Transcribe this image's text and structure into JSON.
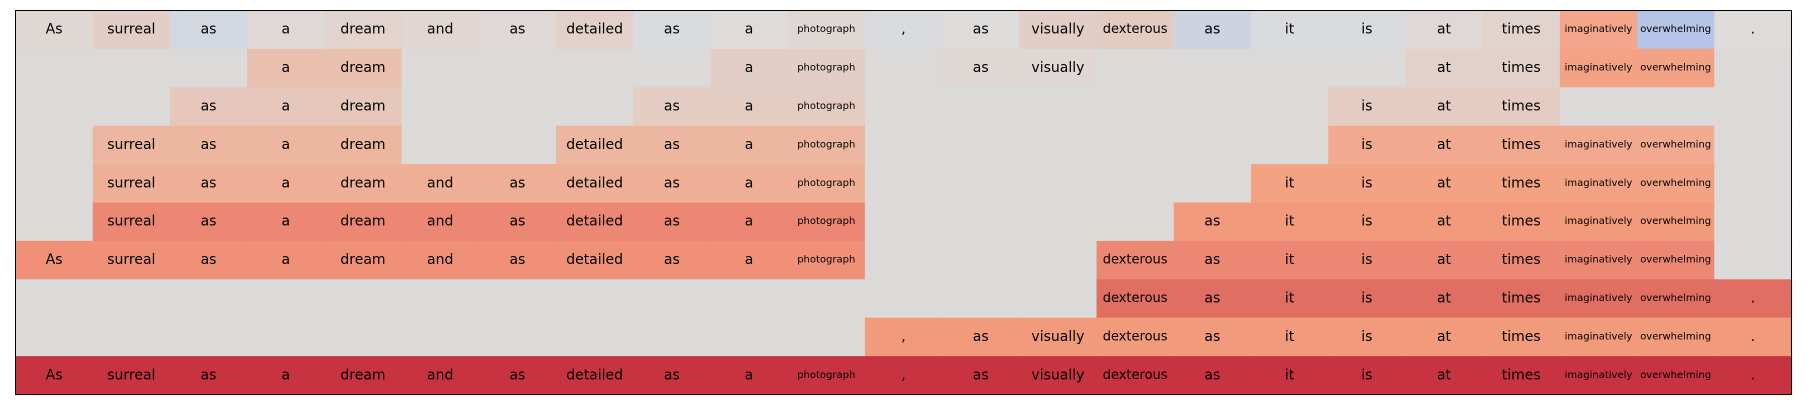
{
  "chart_data": {
    "type": "heatmap",
    "title": "",
    "tokens": [
      "As",
      "surreal",
      "as",
      "a",
      "dream",
      "and",
      "as",
      "detailed",
      "as",
      "a",
      "photograph",
      ",",
      "as",
      "visually",
      "dexterous",
      "as",
      "it",
      "is",
      "at",
      "times",
      "imaginatively",
      "overwhelming",
      "."
    ],
    "rows": [
      [
        1,
        1,
        1,
        1,
        1,
        1,
        1,
        1,
        1,
        1,
        1,
        1,
        1,
        1,
        1,
        1,
        1,
        1,
        1,
        1,
        1,
        1,
        1
      ],
      [
        0,
        0,
        0,
        1,
        1,
        0,
        0,
        0,
        0,
        1,
        1,
        0,
        1,
        1,
        0,
        0,
        0,
        0,
        1,
        1,
        1,
        1,
        0
      ],
      [
        0,
        0,
        1,
        1,
        1,
        0,
        0,
        0,
        1,
        1,
        1,
        0,
        0,
        0,
        0,
        0,
        0,
        1,
        1,
        1,
        0,
        0,
        0
      ],
      [
        0,
        1,
        1,
        1,
        1,
        0,
        0,
        1,
        1,
        1,
        1,
        0,
        0,
        0,
        0,
        0,
        0,
        1,
        1,
        1,
        1,
        1,
        0
      ],
      [
        0,
        1,
        1,
        1,
        1,
        1,
        1,
        1,
        1,
        1,
        1,
        0,
        0,
        0,
        0,
        0,
        1,
        1,
        1,
        1,
        1,
        1,
        0
      ],
      [
        0,
        1,
        1,
        1,
        1,
        1,
        1,
        1,
        1,
        1,
        1,
        0,
        0,
        0,
        0,
        1,
        1,
        1,
        1,
        1,
        1,
        1,
        0
      ],
      [
        1,
        1,
        1,
        1,
        1,
        1,
        1,
        1,
        1,
        1,
        1,
        0,
        0,
        0,
        1,
        1,
        1,
        1,
        1,
        1,
        1,
        1,
        0
      ],
      [
        0,
        0,
        0,
        0,
        0,
        0,
        0,
        0,
        0,
        0,
        0,
        0,
        0,
        0,
        1,
        1,
        1,
        1,
        1,
        1,
        1,
        1,
        1
      ],
      [
        0,
        0,
        0,
        0,
        0,
        0,
        0,
        0,
        0,
        0,
        0,
        1,
        1,
        1,
        1,
        1,
        1,
        1,
        1,
        1,
        1,
        1,
        1
      ],
      [
        1,
        1,
        1,
        1,
        1,
        1,
        1,
        1,
        1,
        1,
        1,
        1,
        1,
        1,
        1,
        1,
        1,
        1,
        1,
        1,
        1,
        1,
        1
      ]
    ],
    "values": [
      [
        0.05,
        0.12,
        -0.05,
        0.04,
        0.08,
        0.06,
        0.04,
        0.1,
        -0.02,
        0.02,
        0.05,
        -0.02,
        0.01,
        0.12,
        0.15,
        -0.08,
        -0.02,
        -0.02,
        0.04,
        0.08,
        0.45,
        -0.2,
        0.02
      ],
      [
        0,
        0,
        0,
        0.25,
        0.25,
        0,
        0,
        0,
        0,
        0.12,
        0.12,
        0,
        0.05,
        0.05,
        0,
        0,
        0,
        0,
        0.1,
        0.1,
        0.48,
        0.48,
        0
      ],
      [
        0,
        0,
        0.18,
        0.18,
        0.18,
        0,
        0,
        0,
        0.14,
        0.14,
        0.14,
        0,
        0,
        0,
        0,
        0,
        0,
        0.14,
        0.14,
        0.14,
        0,
        0,
        0
      ],
      [
        0,
        0.32,
        0.32,
        0.32,
        0.32,
        0,
        0,
        0.32,
        0.32,
        0.32,
        0.32,
        0,
        0,
        0,
        0,
        0,
        0,
        0.42,
        0.42,
        0.42,
        0.42,
        0.42,
        0
      ],
      [
        0,
        0.38,
        0.38,
        0.38,
        0.38,
        0.38,
        0.38,
        0.38,
        0.38,
        0.38,
        0.38,
        0,
        0,
        0,
        0,
        0,
        0.48,
        0.48,
        0.48,
        0.48,
        0.48,
        0.48,
        0
      ],
      [
        0,
        0.58,
        0.58,
        0.58,
        0.58,
        0.58,
        0.58,
        0.58,
        0.58,
        0.58,
        0.58,
        0,
        0,
        0,
        0,
        0.52,
        0.52,
        0.52,
        0.52,
        0.52,
        0.52,
        0.52,
        0
      ],
      [
        0.55,
        0.55,
        0.55,
        0.55,
        0.55,
        0.55,
        0.55,
        0.55,
        0.55,
        0.55,
        0.55,
        0,
        0,
        0,
        0.58,
        0.58,
        0.58,
        0.58,
        0.58,
        0.58,
        0.58,
        0.58,
        0
      ],
      [
        0,
        0,
        0,
        0,
        0,
        0,
        0,
        0,
        0,
        0,
        0,
        0,
        0,
        0,
        0.66,
        0.66,
        0.66,
        0.66,
        0.66,
        0.66,
        0.66,
        0.66,
        0.66
      ],
      [
        0,
        0,
        0,
        0,
        0,
        0,
        0,
        0,
        0,
        0,
        0,
        0.52,
        0.52,
        0.52,
        0.52,
        0.52,
        0.52,
        0.52,
        0.52,
        0.52,
        0.52,
        0.52,
        0.52
      ],
      [
        0.85,
        0.85,
        0.85,
        0.85,
        0.85,
        0.85,
        0.85,
        0.85,
        0.85,
        0.85,
        0.85,
        0.85,
        0.85,
        0.85,
        0.85,
        0.85,
        0.85,
        0.85,
        0.85,
        0.85,
        0.85,
        0.85,
        0.85
      ]
    ],
    "colormap": "coolwarm",
    "empty_color": "#dcdad9",
    "vmin": -1,
    "vmax": 1
  }
}
